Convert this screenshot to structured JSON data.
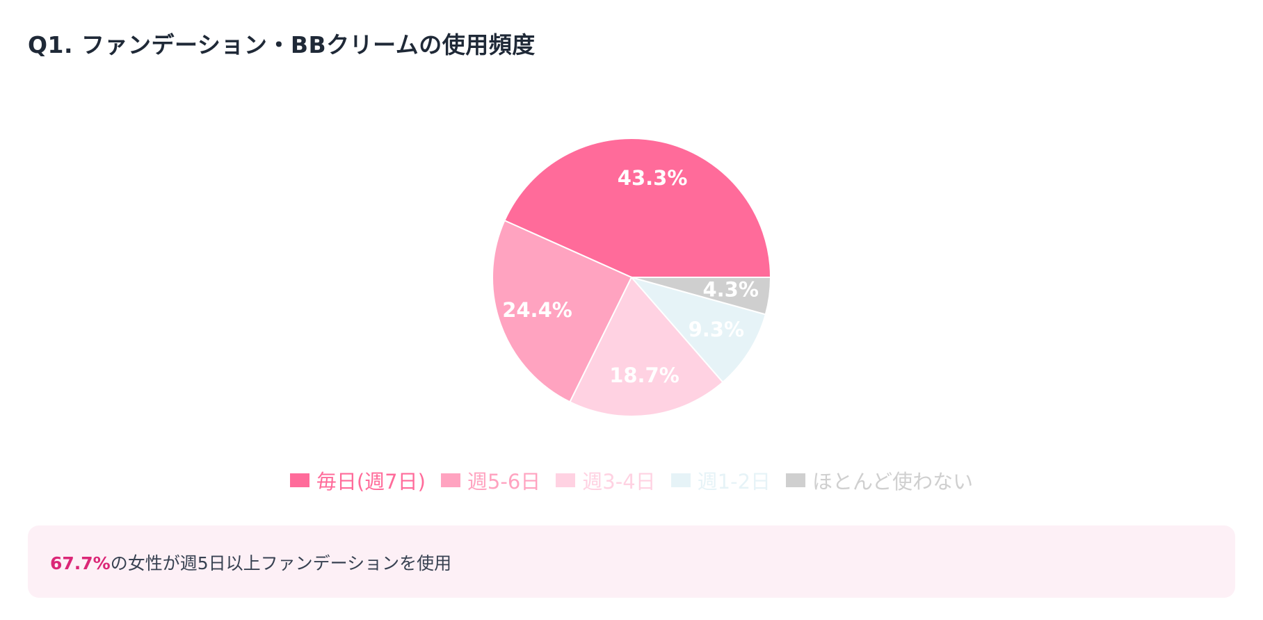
{
  "title": "Q1. ファンデーション・BBクリームの使用頻度",
  "chart_data": {
    "type": "pie",
    "categories": [
      "毎日(週7日)",
      "週5-6日",
      "週3-4日",
      "週1-2日",
      "ほとんど使わない"
    ],
    "values": [
      43.3,
      24.4,
      18.7,
      9.3,
      4.3
    ],
    "labels": [
      "43.3%",
      "24.4%",
      "18.7%",
      "9.3%",
      "4.3%"
    ],
    "colors": [
      "#ff6b9a",
      "#ffa3c0",
      "#ffd2e2",
      "#e6f3f7",
      "#cfcfcf"
    ],
    "legend_position": "bottom",
    "title": "Q1. ファンデーション・BBクリームの使用頻度"
  },
  "legend": [
    {
      "label": "毎日(週7日)",
      "color": "#ff6b9a"
    },
    {
      "label": "週5-6日",
      "color": "#ffa3c0"
    },
    {
      "label": "週3-4日",
      "color": "#ffd2e2"
    },
    {
      "label": "週1-2日",
      "color": "#e6f3f7"
    },
    {
      "label": "ほとんど使わない",
      "color": "#cfcfcf"
    }
  ],
  "highlight": {
    "value": "67.7%",
    "text": "の女性が週5日以上ファンデーションを使用"
  }
}
